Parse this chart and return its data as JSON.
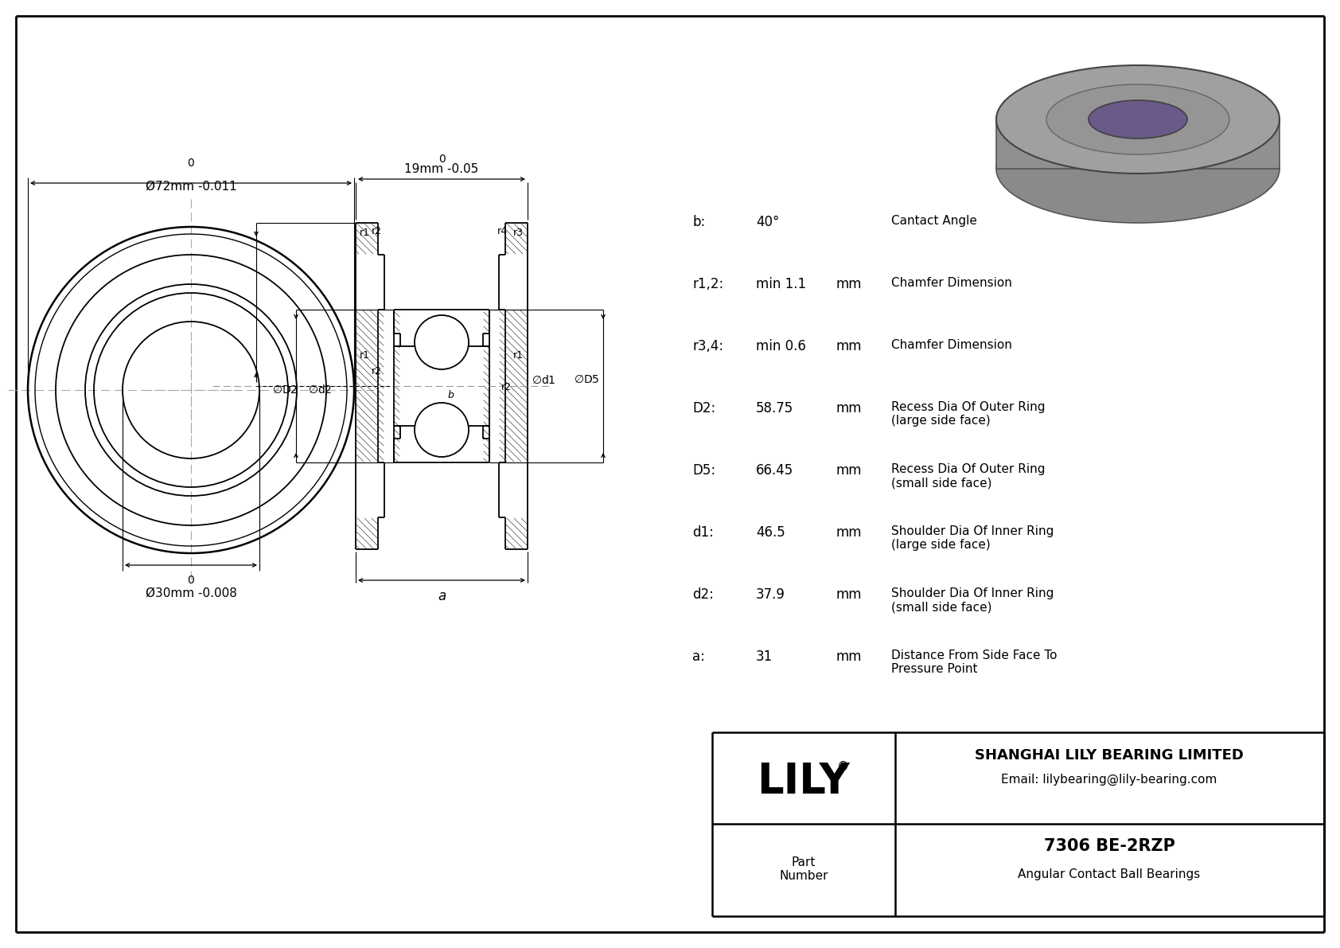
{
  "params": [
    {
      "label": "b:",
      "value": "40°",
      "unit": "",
      "desc": "Cantact Angle"
    },
    {
      "label": "r1,2:",
      "value": "min 1.1",
      "unit": "mm",
      "desc": "Chamfer Dimension"
    },
    {
      "label": "r3,4:",
      "value": "min 0.6",
      "unit": "mm",
      "desc": "Chamfer Dimension"
    },
    {
      "label": "D2:",
      "value": "58.75",
      "unit": "mm",
      "desc": "Recess Dia Of Outer Ring\n(large side face)"
    },
    {
      "label": "D5:",
      "value": "66.45",
      "unit": "mm",
      "desc": "Recess Dia Of Outer Ring\n(small side face)"
    },
    {
      "label": "d1:",
      "value": "46.5",
      "unit": "mm",
      "desc": "Shoulder Dia Of Inner Ring\n(large side face)"
    },
    {
      "label": "d2:",
      "value": "37.9",
      "unit": "mm",
      "desc": "Shoulder Dia Of Inner Ring\n(small side face)"
    },
    {
      "label": "a:",
      "value": "31",
      "unit": "mm",
      "desc": "Distance From Side Face To\nPressure Point"
    }
  ],
  "outer_dim": "Ø72mm",
  "outer_tol_top": "0",
  "outer_tol_bot": "-0.011",
  "inner_dim": "Ø30mm",
  "inner_tol_top": "0",
  "inner_tol_bot": "-0.008",
  "width_dim": "19mm",
  "width_tol_top": "0",
  "width_tol_bot": "-0.05",
  "company": "SHANGHAI LILY BEARING LIMITED",
  "email": "Email: lilybearing@lily-bearing.com",
  "part_number": "7306 BE-2RZP",
  "part_type": "Angular Contact Ball Bearings",
  "lily_logo": "LILY",
  "lily_reg": "®",
  "part_label": "Part\nNumber"
}
